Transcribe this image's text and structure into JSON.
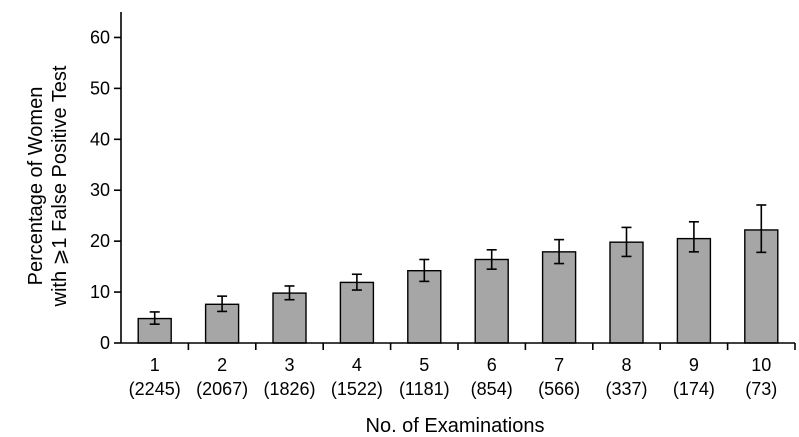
{
  "chart_data": {
    "type": "bar",
    "categories": [
      "1",
      "2",
      "3",
      "4",
      "5",
      "6",
      "7",
      "8",
      "9",
      "10"
    ],
    "sublabels": [
      "(2245)",
      "(2067)",
      "(1826)",
      "(1522)",
      "(1181)",
      "(854)",
      "(566)",
      "(337)",
      "(174)",
      "(73)"
    ],
    "values": [
      4.8,
      7.6,
      9.8,
      11.9,
      14.2,
      16.4,
      17.9,
      19.8,
      20.5,
      22.2
    ],
    "error_low": [
      3.7,
      6.2,
      8.5,
      10.4,
      12.1,
      14.5,
      15.6,
      17.0,
      17.9,
      17.8
    ],
    "error_high": [
      6.1,
      9.2,
      11.2,
      13.5,
      16.4,
      18.3,
      20.3,
      22.7,
      23.8,
      27.1
    ],
    "xlabel": "No. of Examinations",
    "ylabel_line1": "Percentage of Women",
    "ylabel_line2": "with ⩾1 False Positive Test",
    "ylim": [
      0,
      65
    ],
    "yticks": [
      0,
      10,
      20,
      30,
      40,
      50,
      60
    ],
    "grid": false,
    "bar_color": "#a6a6a6"
  }
}
